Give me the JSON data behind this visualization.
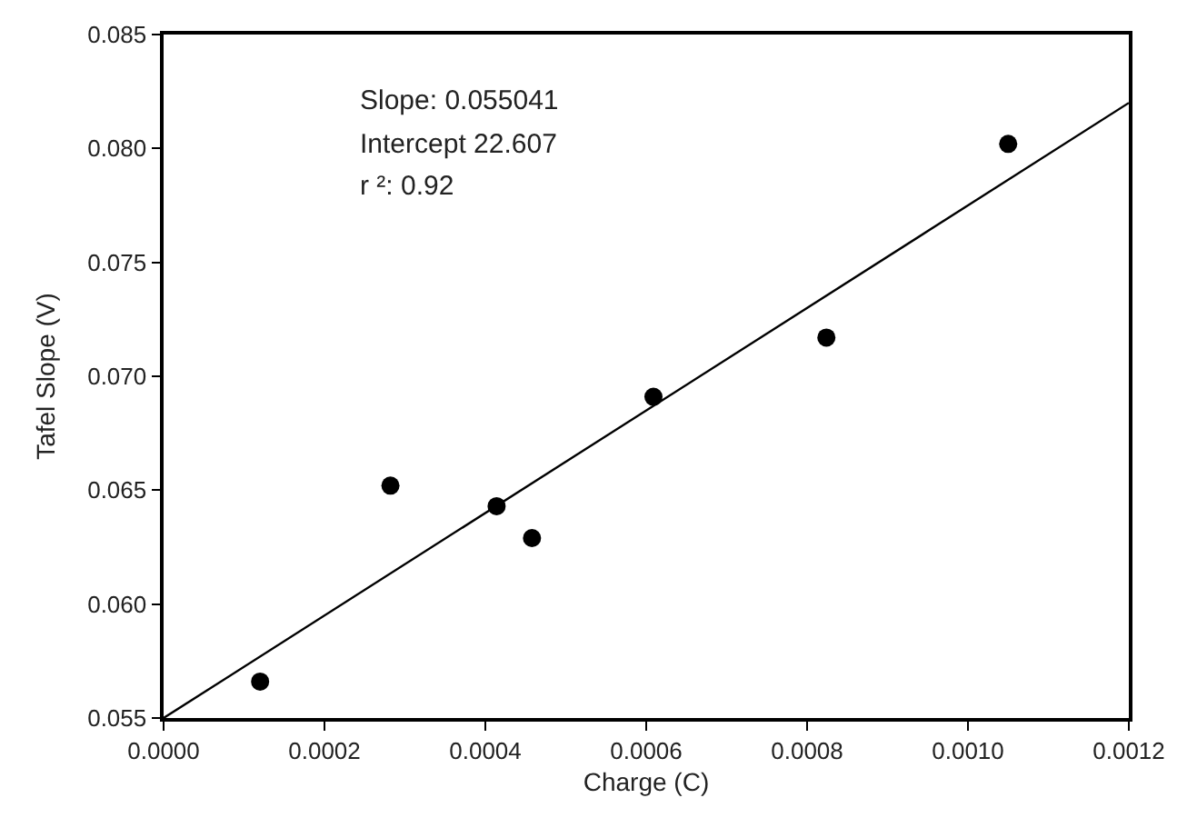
{
  "chart_data": {
    "type": "scatter",
    "xlabel": "Charge (C)",
    "ylabel": "Tafel Slope (V)",
    "xlim": [
      0,
      0.0012
    ],
    "xticks": [
      {
        "value": 0,
        "label": "0.0000"
      },
      0.0002,
      0.0004,
      0.0006,
      0.0008,
      {
        "value": 0.001,
        "label": "0.0010"
      },
      0.0012
    ],
    "ylim": [
      0.055,
      0.085
    ],
    "yticks": [
      0.055,
      {
        "value": 0.06,
        "label": "0.060"
      },
      0.065,
      {
        "value": 0.07,
        "label": "0.070"
      },
      0.075,
      {
        "value": 0.08,
        "label": "0.080"
      },
      0.085
    ],
    "grid": false,
    "series": [
      {
        "marker": "circle",
        "color": "#000000",
        "x": [
          0.00012,
          0.000282,
          0.000414,
          0.000458,
          0.000609,
          0.000824,
          0.00105
        ],
        "values": [
          0.0566,
          0.0652,
          0.0643,
          0.0629,
          0.0691,
          0.0717,
          0.0802
        ]
      },
      {
        "type": "line",
        "color": "#000000",
        "x": [
          0,
          0.0012
        ],
        "values": [
          0.055,
          0.082
        ]
      }
    ],
    "annotations": [
      "Slope: 0.055041",
      "Intercept 22.607",
      "r ²: 0.92"
    ]
  }
}
